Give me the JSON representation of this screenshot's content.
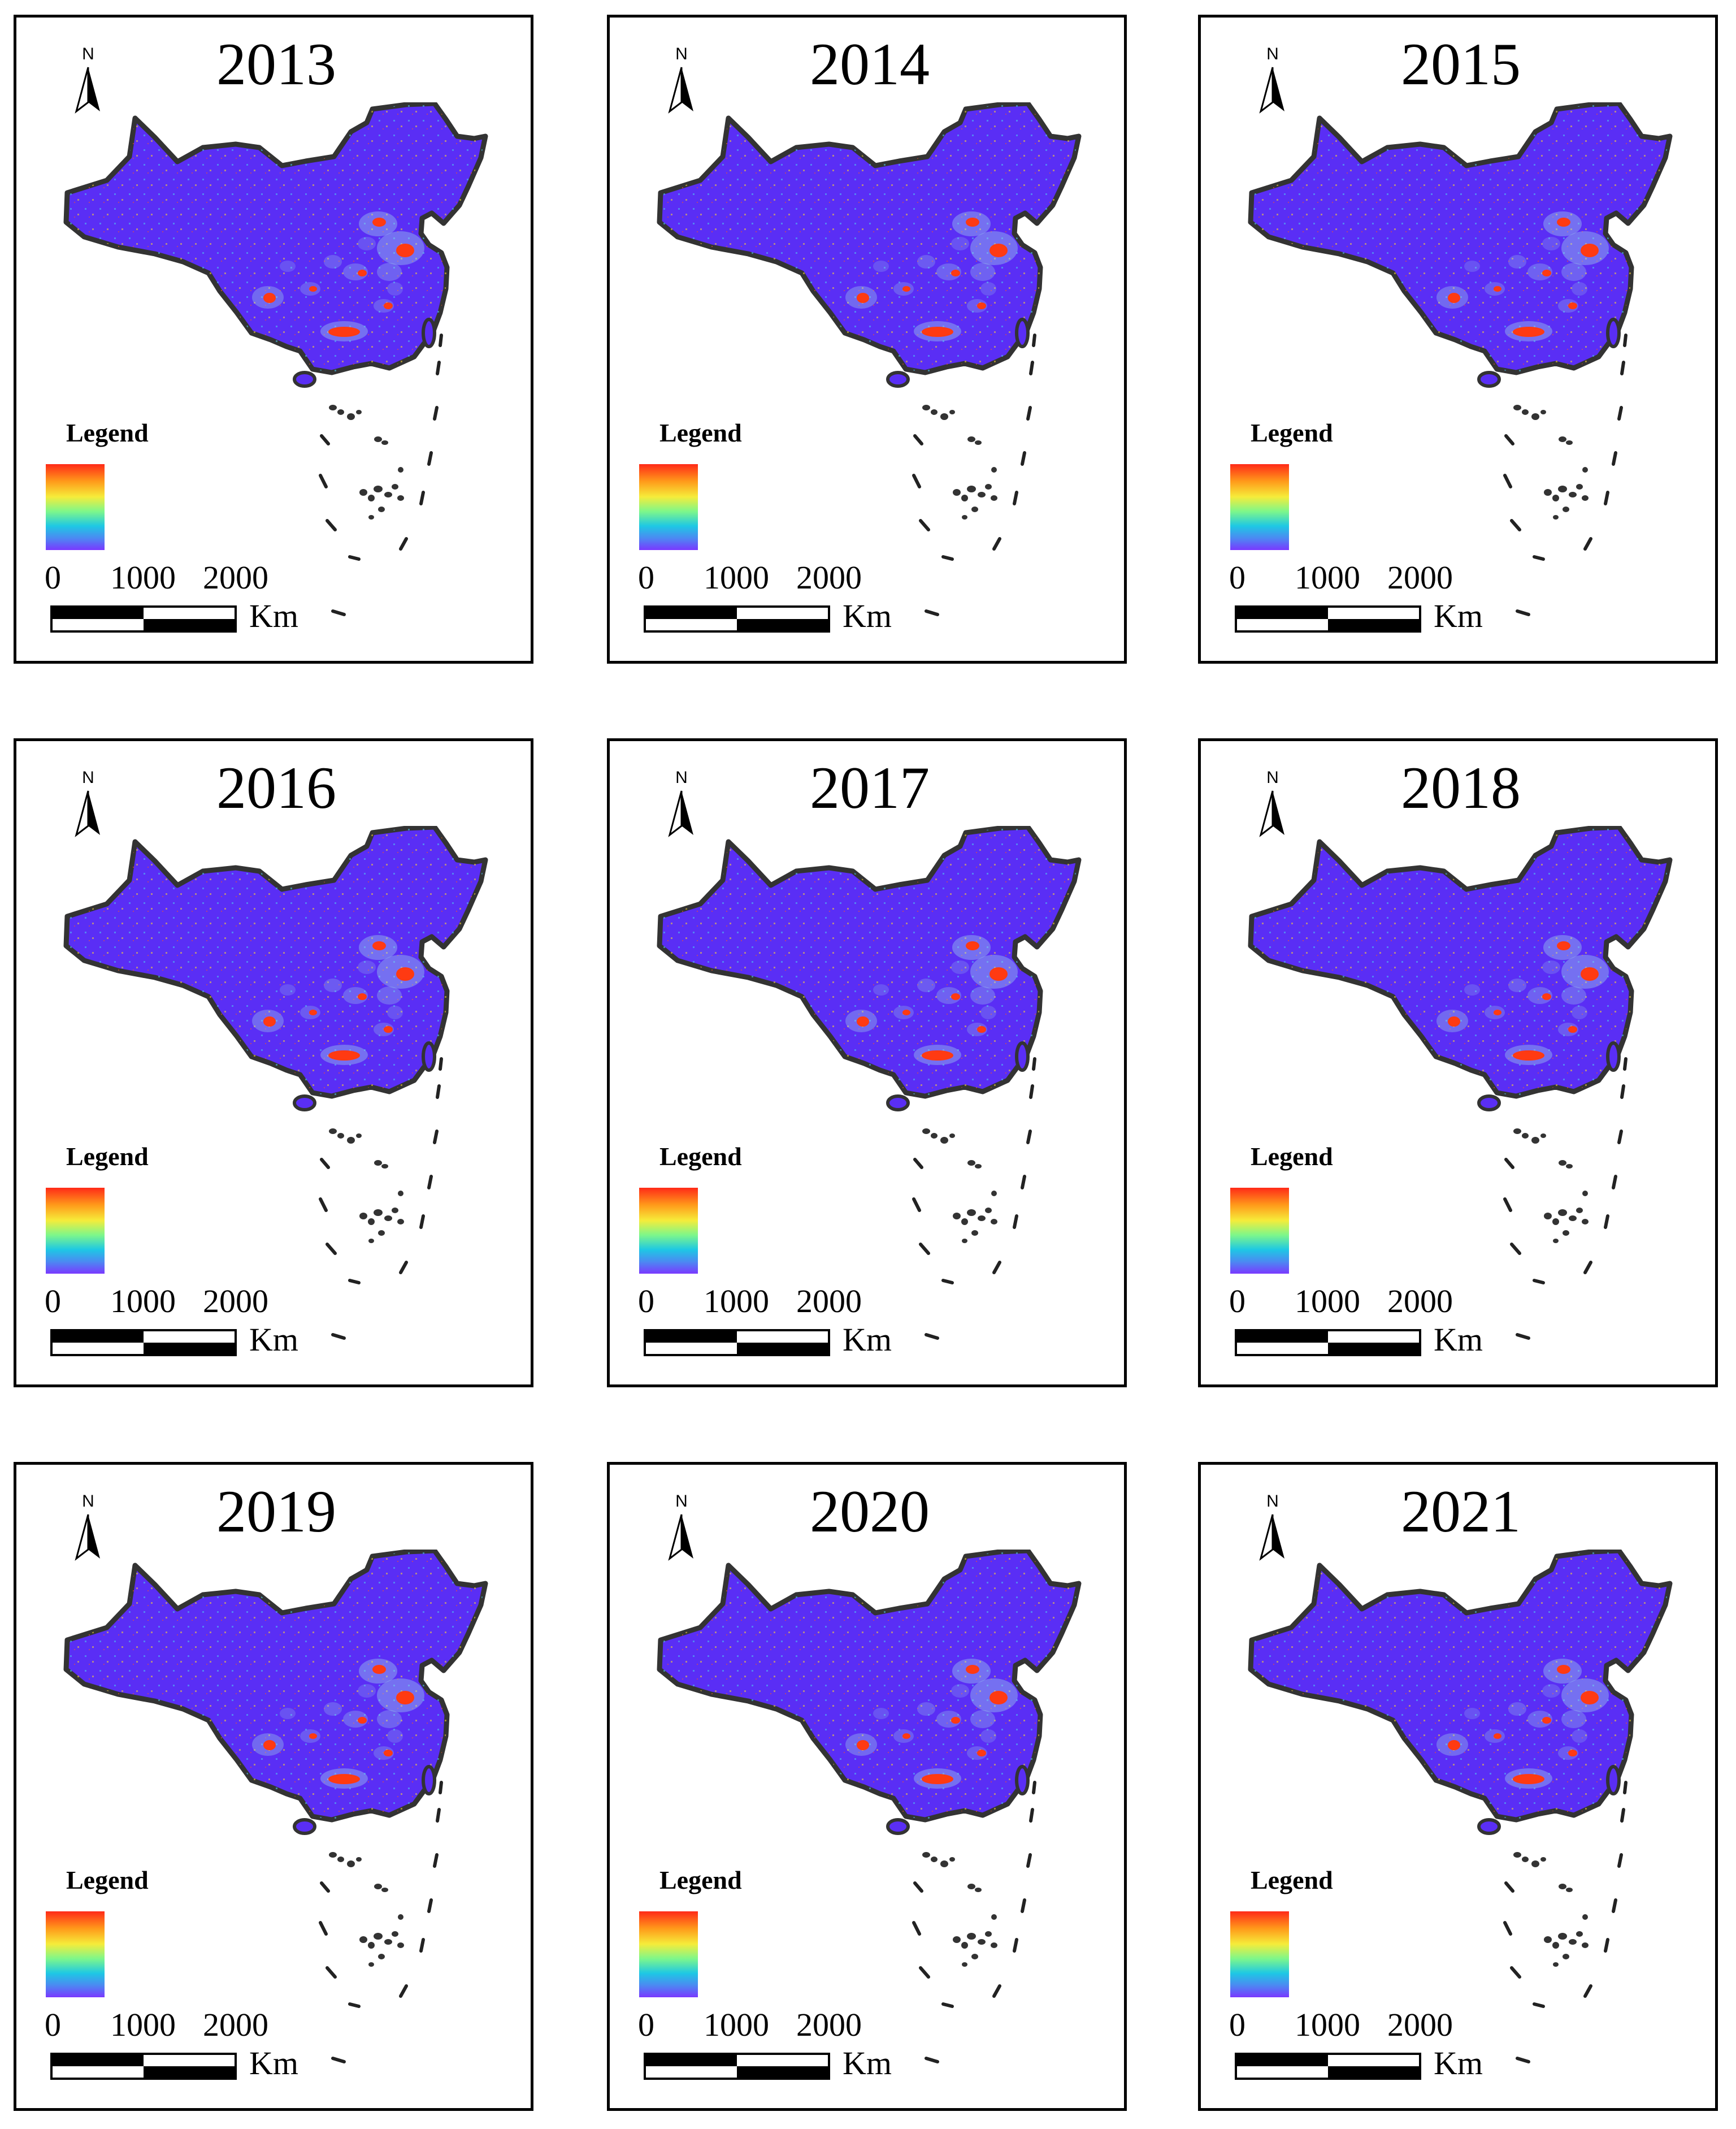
{
  "figure": {
    "panels": [
      {
        "year": "2013"
      },
      {
        "year": "2014"
      },
      {
        "year": "2015"
      },
      {
        "year": "2016"
      },
      {
        "year": "2017"
      },
      {
        "year": "2018"
      },
      {
        "year": "2019"
      },
      {
        "year": "2020"
      },
      {
        "year": "2021"
      }
    ],
    "north_label": "N",
    "legend_title": "Legend",
    "scale_labels": [
      "0",
      "1000",
      "2000"
    ],
    "scale_unit": "Km",
    "colors": {
      "base_fill": "#5a2ef5",
      "outline": "#333333",
      "hotspot": "#ff3a12",
      "ramp": [
        "#ff2a18",
        "#f6ec3a",
        "#7ef78a",
        "#1ec8e4",
        "#7a38ff"
      ]
    }
  }
}
